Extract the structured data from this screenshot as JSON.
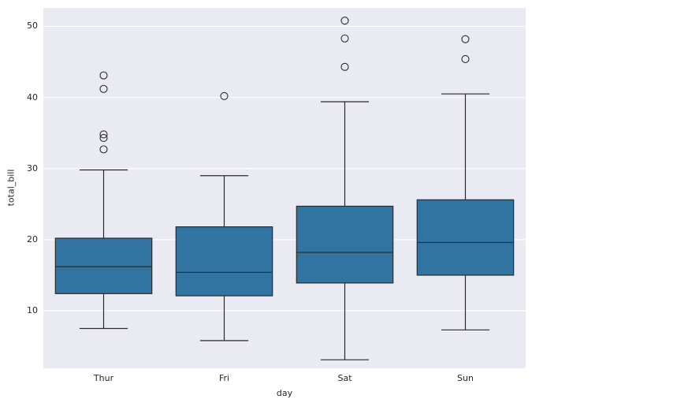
{
  "figure": {
    "background": "#ffffff",
    "axes_background": "#eaeaf2",
    "grid_color": "#ffffff",
    "box_fill": "#3274a1",
    "line_color": "#2b2b2b"
  },
  "chart_data": {
    "type": "box",
    "title": "",
    "xlabel": "day",
    "ylabel": "total_bill",
    "categories": [
      "Thur",
      "Fri",
      "Sat",
      "Sun"
    ],
    "yticks": [
      10,
      20,
      30,
      40,
      50
    ],
    "ylim": [
      1.9,
      52.6
    ],
    "grid": true,
    "legend": "none",
    "series": [
      {
        "name": "Thur",
        "whisker_low": 7.5,
        "q1": 12.4,
        "median": 16.2,
        "q3": 20.2,
        "whisker_high": 29.8,
        "outliers": [
          32.7,
          34.3,
          34.8,
          41.2,
          43.1
        ]
      },
      {
        "name": "Fri",
        "whisker_low": 5.8,
        "q1": 12.1,
        "median": 15.4,
        "q3": 21.8,
        "whisker_high": 29.0,
        "outliers": [
          40.2
        ]
      },
      {
        "name": "Sat",
        "whisker_low": 3.1,
        "q1": 13.9,
        "median": 18.2,
        "q3": 24.7,
        "whisker_high": 39.4,
        "outliers": [
          44.3,
          48.3,
          50.8
        ]
      },
      {
        "name": "Sun",
        "whisker_low": 7.3,
        "q1": 15.0,
        "median": 19.6,
        "q3": 25.6,
        "whisker_high": 40.5,
        "outliers": [
          45.4,
          48.2
        ]
      }
    ]
  }
}
